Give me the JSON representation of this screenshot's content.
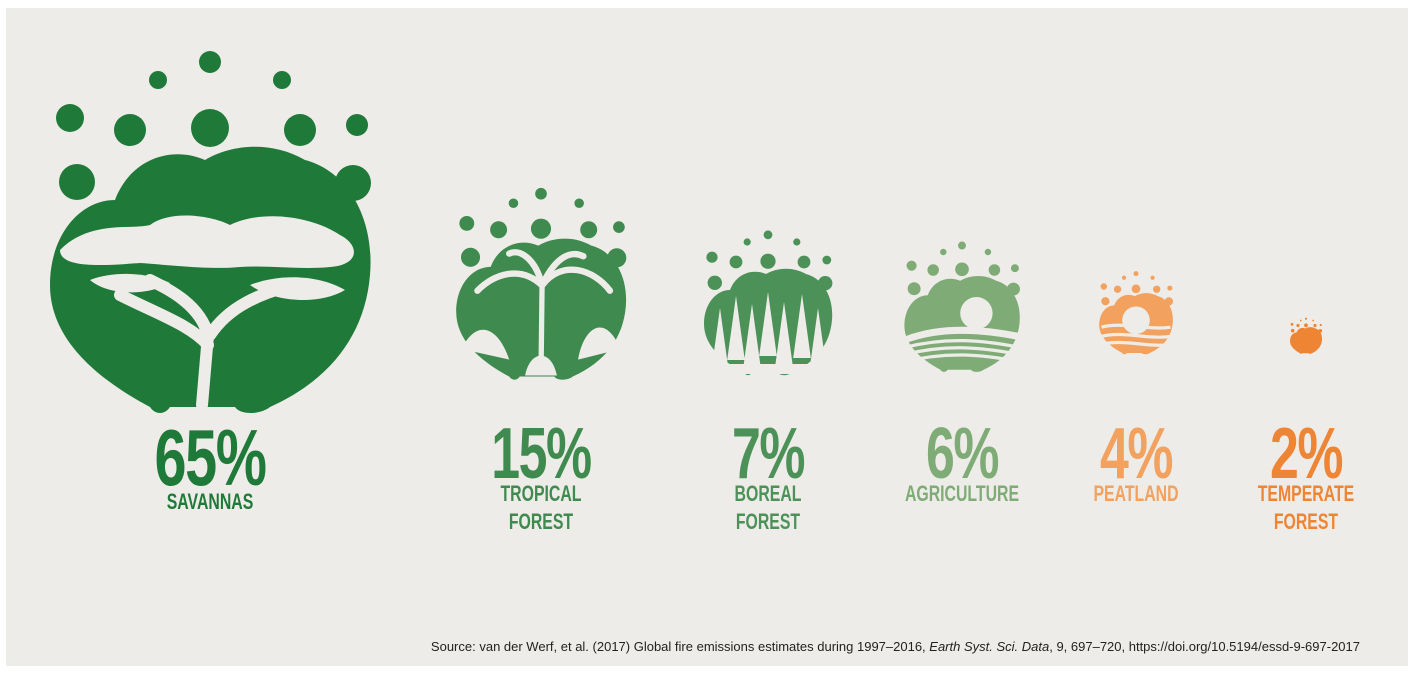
{
  "chart_data": {
    "type": "bar",
    "categories": [
      "SAVANNAS",
      "TROPICAL FOREST",
      "BOREAL FOREST",
      "AGRICULTURE",
      "PEATLAND",
      "TEMPERATE FOREST"
    ],
    "values": [
      65,
      15,
      7,
      6,
      4,
      2
    ],
    "unit": "%",
    "label_lines": [
      [
        "SAVANNAS"
      ],
      [
        "TROPICAL",
        "FOREST"
      ],
      [
        "BOREAL",
        "FOREST"
      ],
      [
        "AGRICULTURE"
      ],
      [
        "PEATLAND"
      ],
      [
        "TEMPERATE",
        "FOREST"
      ]
    ],
    "display": [
      "65%",
      "15%",
      "7%",
      "6%",
      "4%",
      "2%"
    ],
    "colors": [
      "#1f7a3a",
      "#3f8a4f",
      "#4c9258",
      "#7fac76",
      "#f2a15e",
      "#ee8534"
    ],
    "icons": [
      "savanna-tree-icon",
      "tropical-palm-icon",
      "boreal-pine-icon",
      "agriculture-field-icon",
      "peatland-icon",
      "temperate-forest-icon"
    ]
  },
  "source": {
    "prefix": "Source: van der Werf, et al. (2017) Global fire emissions estimates during 1997–2016, ",
    "journal": "Earth Syst. Sci. Data",
    "suffix": ", 9, 697–720, https://doi.org/10.5194/essd-9-697-2017"
  }
}
